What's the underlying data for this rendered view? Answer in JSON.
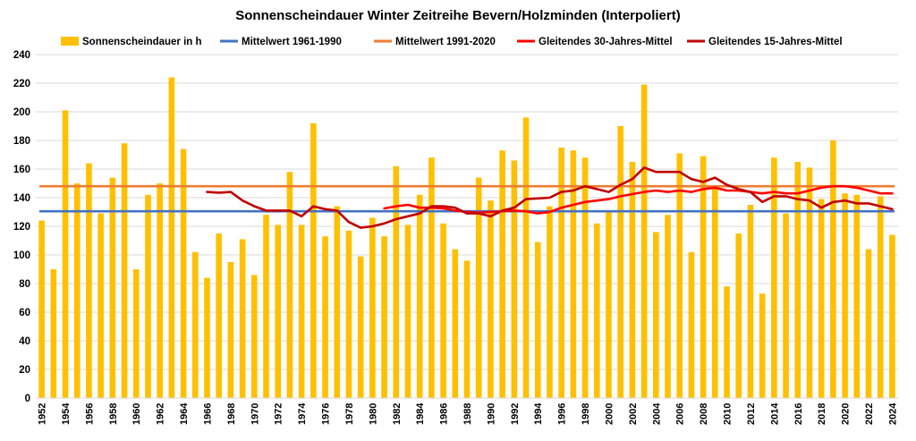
{
  "chart_data": {
    "type": "bar",
    "title": "Sonnenscheindauer Winter Zeitreihe Bevern/Holzminden (Interpoliert)",
    "xlabel": "",
    "ylabel": "",
    "ylim": [
      0,
      240
    ],
    "yticks": [
      0,
      20,
      40,
      60,
      80,
      100,
      120,
      140,
      160,
      180,
      200,
      220,
      240
    ],
    "grid": true,
    "legend_position": "top",
    "categories": [
      1952,
      1953,
      1954,
      1955,
      1956,
      1957,
      1958,
      1959,
      1960,
      1961,
      1962,
      1963,
      1964,
      1965,
      1966,
      1967,
      1968,
      1969,
      1970,
      1971,
      1972,
      1973,
      1974,
      1975,
      1976,
      1977,
      1978,
      1979,
      1980,
      1981,
      1982,
      1983,
      1984,
      1985,
      1986,
      1987,
      1988,
      1989,
      1990,
      1991,
      1992,
      1993,
      1994,
      1995,
      1996,
      1997,
      1998,
      1999,
      2000,
      2001,
      2002,
      2003,
      2004,
      2005,
      2006,
      2007,
      2008,
      2009,
      2010,
      2011,
      2012,
      2013,
      2014,
      2015,
      2016,
      2017,
      2018,
      2019,
      2020,
      2021,
      2022,
      2023,
      2024
    ],
    "xtick_labels": [
      "1952",
      "1954",
      "1956",
      "1958",
      "1960",
      "1962",
      "1964",
      "1966",
      "1968",
      "1970",
      "1972",
      "1974",
      "1976",
      "1978",
      "1980",
      "1982",
      "1984",
      "1986",
      "1988",
      "1990",
      "1992",
      "1994",
      "1996",
      "1998",
      "2000",
      "2002",
      "2004",
      "2006",
      "2008",
      "2010",
      "2012",
      "2014",
      "2016",
      "2018",
      "2020",
      "2022",
      "2024"
    ],
    "series": [
      {
        "name": "Sonnenscheindauer in h",
        "kind": "bar",
        "color": "#FFC000",
        "values": [
          124,
          90,
          201,
          150,
          164,
          129,
          154,
          178,
          90,
          142,
          150,
          224,
          174,
          102,
          84,
          115,
          95,
          111,
          86,
          128,
          121,
          158,
          121,
          192,
          113,
          134,
          117,
          99,
          126,
          113,
          162,
          121,
          142,
          168,
          122,
          104,
          96,
          154,
          138,
          173,
          166,
          196,
          109,
          134,
          175,
          173,
          168,
          122,
          130,
          190,
          165,
          219,
          116,
          128,
          171,
          102,
          169,
          148,
          78,
          115,
          135,
          73,
          168,
          129,
          165,
          161,
          139,
          180,
          143,
          142,
          104,
          141,
          114
        ]
      },
      {
        "name": "Mittelwert 1961-1990",
        "kind": "hline",
        "color": "#4472C4",
        "value": 130.5
      },
      {
        "name": "Mittelwert 1991-2020",
        "kind": "hline",
        "color": "#ED7D31",
        "value": 148
      },
      {
        "name": "Gleitendes 30-Jahres-Mittel",
        "kind": "line",
        "color": "#FF0000",
        "x": [
          1981,
          1982,
          1983,
          1984,
          1985,
          1986,
          1987,
          1988,
          1989,
          1990,
          1991,
          1992,
          1993,
          1994,
          1995,
          1996,
          1997,
          1998,
          1999,
          2000,
          2001,
          2002,
          2003,
          2004,
          2005,
          2006,
          2007,
          2008,
          2009,
          2010,
          2011,
          2012,
          2013,
          2014,
          2015,
          2016,
          2017,
          2018,
          2019,
          2020,
          2021,
          2022,
          2023,
          2024
        ],
        "values": [
          132.5,
          134,
          135,
          133,
          133,
          132.5,
          131,
          130,
          129.5,
          130,
          130.5,
          131,
          130.5,
          129,
          130,
          133,
          135,
          137,
          138,
          139,
          141,
          142.5,
          144,
          145,
          144,
          145,
          144,
          146,
          147,
          145,
          145,
          144,
          143,
          144,
          143,
          143,
          145,
          147,
          148,
          148,
          147,
          145,
          143,
          143
        ]
      },
      {
        "name": "Gleitendes 15-Jahres-Mittel",
        "kind": "line",
        "color": "#C00000",
        "x": [
          1966,
          1967,
          1968,
          1969,
          1970,
          1971,
          1972,
          1973,
          1974,
          1975,
          1976,
          1977,
          1978,
          1979,
          1980,
          1981,
          1982,
          1983,
          1984,
          1985,
          1986,
          1987,
          1988,
          1989,
          1990,
          1991,
          1992,
          1993,
          1994,
          1995,
          1996,
          1997,
          1998,
          1999,
          2000,
          2001,
          2002,
          2003,
          2004,
          2005,
          2006,
          2007,
          2008,
          2009,
          2010,
          2011,
          2012,
          2013,
          2014,
          2015,
          2016,
          2017,
          2018,
          2019,
          2020,
          2021,
          2022,
          2023,
          2024
        ],
        "values": [
          144,
          143.5,
          144,
          138,
          134,
          131,
          131,
          131,
          127,
          134,
          132,
          131,
          123,
          119,
          120,
          122,
          125,
          127,
          129,
          134,
          134,
          133,
          129,
          129,
          127,
          131,
          133,
          139,
          139.5,
          140,
          144,
          145,
          148,
          146,
          144,
          149,
          153,
          161,
          158,
          158,
          158,
          153,
          151,
          154,
          149,
          146,
          144,
          137,
          141,
          141,
          139,
          138,
          133,
          137,
          138,
          136,
          136,
          134,
          132
        ]
      }
    ]
  }
}
